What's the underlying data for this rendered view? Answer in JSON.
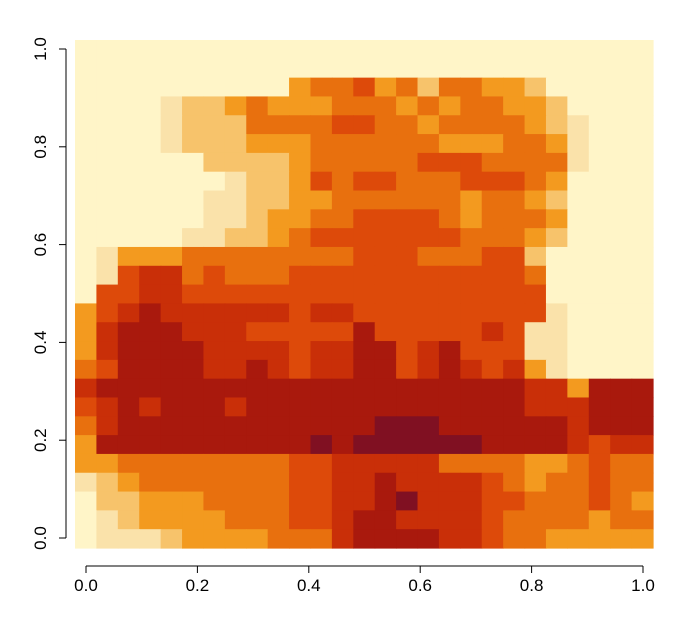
{
  "chart_data": {
    "type": "heatmap",
    "title": "",
    "xlabel": "",
    "ylabel": "",
    "xlim": [
      0,
      1
    ],
    "ylim": [
      0,
      1
    ],
    "x_ticks": [
      "0.0",
      "0.2",
      "0.4",
      "0.6",
      "0.8",
      "1.0"
    ],
    "y_ticks": [
      "0.0",
      "0.2",
      "0.4",
      "0.6",
      "0.8",
      "1.0"
    ],
    "grid": false,
    "legend": "none",
    "colormap": "heat.colors (reversed)",
    "palette": [
      "#FFF5C8",
      "#FAE2AA",
      "#F7C36B",
      "#F39A1F",
      "#E8700E",
      "#DD4A0A",
      "#C92F08",
      "#A9190D",
      "#801022"
    ],
    "nrows": 27,
    "ncols": 27,
    "grid_values": [
      "000000000000000000000000000",
      "000000000000000000000000000",
      "000000000034453424433200000",
      "000012234333444343443320000",
      "000012224444554434444321000",
      "000012223334444443334431000",
      "000000222234444455544441000",
      "000000012235455444555430000",
      "000000112233444444344320000",
      "000000112334455554344430000",
      "000001122345555555444320000",
      "013334444444455544455200000",
      "015664544455555555555400000",
      "055665555555555555555500000",
      "356766666656655555555510000",
      "367776665555575555565110000",
      "367777666656677567555110000",
      "457777667656677567656310000",
      "677777777777777777777663777",
      "567677767777777777777666777",
      "467777777777778887777776777",
      "377777777778788888877776566",
      "334444444455666664444334544",
      "123444444455667666654344544",
      "022333444455667866655444543",
      "012333344455677666654444344",
      "011123333444677776654433333"
    ]
  }
}
